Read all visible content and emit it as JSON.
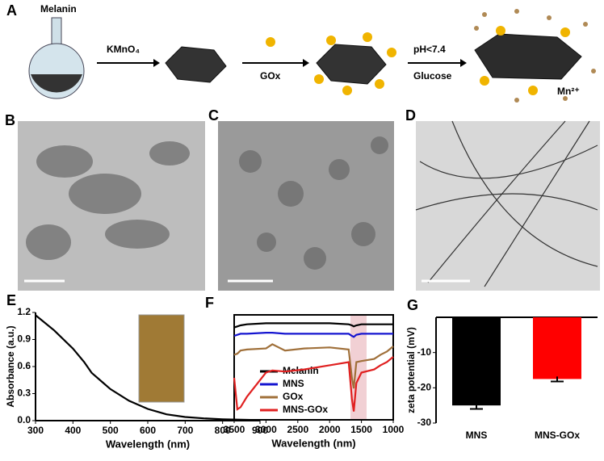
{
  "schematic": {
    "panel": "A",
    "labels": [
      "Melanin",
      "KMnO₄",
      "GOx",
      "pH<7.4",
      "Glucose",
      "Mn²⁺"
    ]
  },
  "micrographs": {
    "panels": [
      "B",
      "C",
      "D"
    ]
  },
  "chart_data": [
    {
      "type": "line",
      "panel": "E",
      "xlabel": "Wavelength (nm)",
      "ylabel": "Absorbance (a.u.)",
      "color": "#000000",
      "x": [
        300,
        350,
        400,
        430,
        450,
        500,
        550,
        600,
        650,
        700,
        750,
        800,
        850,
        900
      ],
      "values": [
        1.17,
        1.0,
        0.8,
        0.65,
        0.53,
        0.35,
        0.22,
        0.13,
        0.07,
        0.04,
        0.025,
        0.015,
        0.01,
        0.005
      ],
      "xlim": [
        300,
        900
      ],
      "xticks": [
        300,
        400,
        500,
        600,
        700,
        800,
        900
      ],
      "ylim": [
        0,
        1.2
      ],
      "yticks": [
        {
          "value": 0,
          "label": "0.0"
        },
        0.3,
        0.6,
        0.9,
        1.2
      ]
    },
    {
      "type": "line",
      "panel": "F",
      "xlabel": "Wavelength (nm)",
      "x": [
        3500,
        3450,
        3400,
        3300,
        3000,
        2900,
        2700,
        2400,
        2000,
        1700,
        1650,
        1620,
        1580,
        1500,
        1300,
        1200,
        1100,
        1000
      ],
      "series": [
        {
          "name": "Melanin",
          "color": "#000000",
          "values": [
            88,
            89,
            90,
            91,
            92,
            92,
            92,
            92,
            92,
            91,
            90,
            89,
            90,
            91,
            91,
            91,
            91,
            91
          ]
        },
        {
          "name": "MNS",
          "color": "#1515d0",
          "values": [
            80,
            81,
            82,
            82,
            83,
            83,
            82,
            82,
            82,
            82,
            80,
            79,
            81,
            82,
            82,
            82,
            82,
            82
          ]
        },
        {
          "name": "GOx",
          "color": "#a0703a",
          "values": [
            62,
            63,
            66,
            67,
            68,
            72,
            66,
            68,
            69,
            67,
            40,
            30,
            55,
            56,
            58,
            62,
            65,
            70
          ]
        },
        {
          "name": "MNS-GOx",
          "color": "#e02020",
          "values": [
            40,
            10,
            12,
            22,
            45,
            47,
            46,
            48,
            52,
            55,
            20,
            8,
            35,
            45,
            48,
            52,
            55,
            60
          ]
        }
      ],
      "xlim": [
        3500,
        1000
      ],
      "xticks": [
        3500,
        3000,
        2500,
        2000,
        1500,
        1000
      ],
      "ylim": [
        0,
        100
      ]
    },
    {
      "type": "bar",
      "panel": "G",
      "ylabel": "zeta potential (mV)",
      "categories": [
        "MNS",
        "MNS-GOx"
      ],
      "values": [
        -25,
        -17.5
      ],
      "errors": [
        1,
        0.7
      ],
      "colors": [
        "#000000",
        "#ff0000"
      ],
      "ylim": [
        -30,
        0
      ],
      "yticks": [
        -10,
        -20,
        -30
      ]
    }
  ]
}
